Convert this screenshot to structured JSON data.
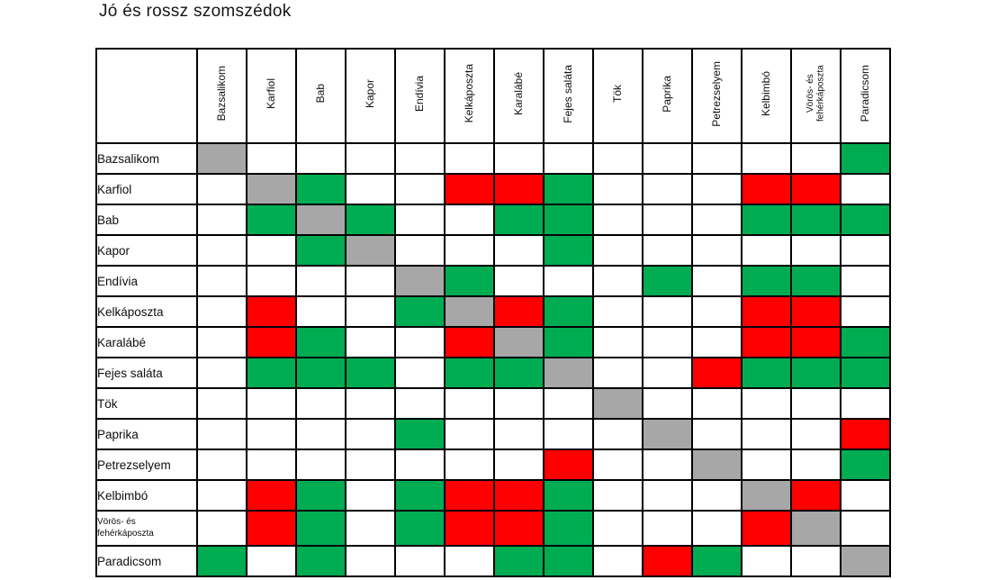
{
  "title": "Jó és rossz szomszédok",
  "colors": {
    "good": "#00AC52",
    "bad": "#FE0000",
    "self": "#A7A7A7",
    "neutral": "#FFFFFF",
    "grid": "#000000",
    "title_text": "#161616"
  },
  "chart_data": {
    "type": "heatmap",
    "title": "Jó és rossz szomszédok",
    "legend_position": "none",
    "grid": true,
    "code_meaning": {
      "G": "green cell",
      "B": "red cell",
      "S": "gray diagonal cell (same plant)",
      "-": "white cell"
    },
    "columns": [
      "Bazsalikom",
      "Karfiol",
      "Bab",
      "Kapor",
      "Endívia",
      "Kelkáposzta",
      "Karalábé",
      "Fejes saláta",
      "Tök",
      "Paprika",
      "Petrezselyem",
      "Kelbimbó",
      "Vörös- és fehérkáposzta",
      "Paradicsom"
    ],
    "rows": [
      "Bazsalikom",
      "Karfiol",
      "Bab",
      "Kapor",
      "Endívia",
      "Kelkáposzta",
      "Karalábé",
      "Fejes saláta",
      "Tök",
      "Paprika",
      "Petrezselyem",
      "Kelbimbó",
      "Vörös- és fehérkáposzta",
      "Paradicsom"
    ],
    "matrix": [
      [
        "S",
        "-",
        "-",
        "-",
        "-",
        "-",
        "-",
        "-",
        "-",
        "-",
        "-",
        "-",
        "-",
        "G"
      ],
      [
        "-",
        "S",
        "G",
        "-",
        "-",
        "B",
        "B",
        "G",
        "-",
        "-",
        "-",
        "B",
        "B",
        "-"
      ],
      [
        "-",
        "G",
        "S",
        "G",
        "-",
        "-",
        "G",
        "G",
        "-",
        "-",
        "-",
        "G",
        "G",
        "G"
      ],
      [
        "-",
        "-",
        "G",
        "S",
        "-",
        "-",
        "-",
        "G",
        "-",
        "-",
        "-",
        "-",
        "-",
        "-"
      ],
      [
        "-",
        "-",
        "-",
        "-",
        "S",
        "G",
        "-",
        "-",
        "-",
        "G",
        "-",
        "G",
        "G",
        "-"
      ],
      [
        "-",
        "B",
        "-",
        "-",
        "G",
        "S",
        "B",
        "G",
        "-",
        "-",
        "-",
        "B",
        "B",
        "-"
      ],
      [
        "-",
        "B",
        "G",
        "-",
        "-",
        "B",
        "S",
        "G",
        "-",
        "-",
        "-",
        "B",
        "B",
        "G"
      ],
      [
        "-",
        "G",
        "G",
        "G",
        "-",
        "G",
        "G",
        "S",
        "-",
        "-",
        "B",
        "G",
        "G",
        "G"
      ],
      [
        "-",
        "-",
        "-",
        "-",
        "-",
        "-",
        "-",
        "-",
        "S",
        "-",
        "-",
        "-",
        "-",
        "-"
      ],
      [
        "-",
        "-",
        "-",
        "-",
        "G",
        "-",
        "-",
        "-",
        "-",
        "S",
        "-",
        "-",
        "-",
        "B"
      ],
      [
        "-",
        "-",
        "-",
        "-",
        "-",
        "-",
        "-",
        "B",
        "-",
        "-",
        "S",
        "-",
        "-",
        "G"
      ],
      [
        "-",
        "B",
        "G",
        "-",
        "G",
        "B",
        "B",
        "G",
        "-",
        "-",
        "-",
        "S",
        "B",
        "-"
      ],
      [
        "-",
        "B",
        "G",
        "-",
        "G",
        "B",
        "B",
        "G",
        "-",
        "-",
        "-",
        "B",
        "S",
        "-"
      ],
      [
        "G",
        "-",
        "G",
        "-",
        "-",
        "-",
        "G",
        "G",
        "-",
        "B",
        "G",
        "-",
        "-",
        "S"
      ]
    ]
  }
}
